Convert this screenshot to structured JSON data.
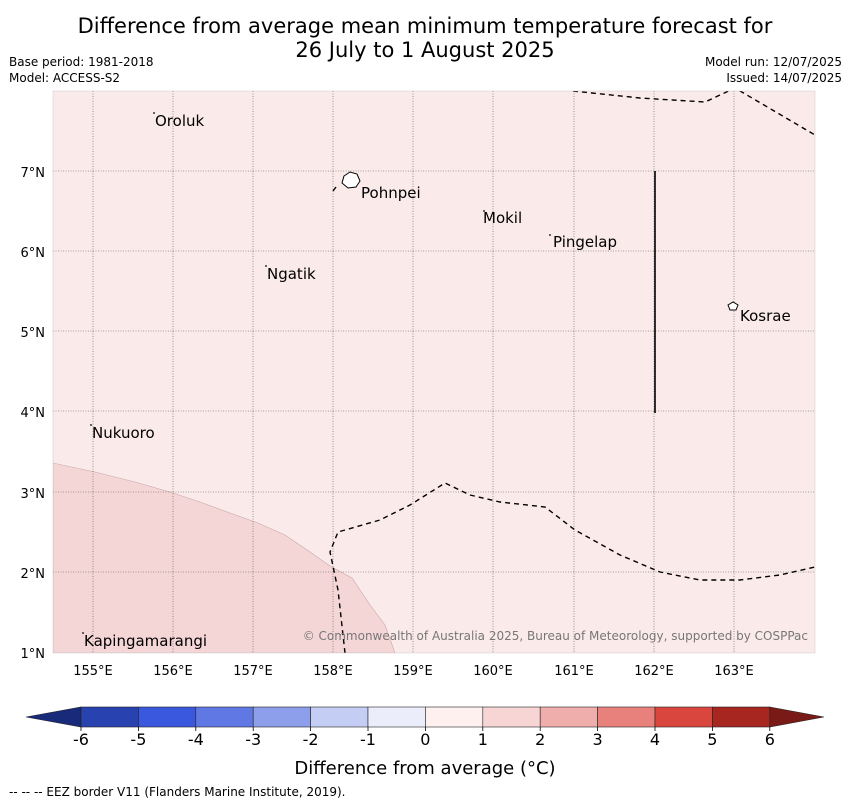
{
  "header": {
    "title_line1": "Difference from average mean minimum temperature forecast for",
    "title_line2": "26 July to 1 August 2025",
    "base_period": "Base period: 1981-2018",
    "model": "Model: ACCESS-S2",
    "model_run": "Model run: 12/07/2025",
    "issued": "Issued: 14/07/2025"
  },
  "map": {
    "lon_ticks": [
      "155°E",
      "156°E",
      "157°E",
      "158°E",
      "159°E",
      "160°E",
      "161°E",
      "162°E",
      "163°E"
    ],
    "lat_ticks": [
      "1°N",
      "2°N",
      "3°N",
      "4°N",
      "5°N",
      "6°N",
      "7°N"
    ],
    "places": [
      {
        "name": "Oroluk"
      },
      {
        "name": "Pohnpei"
      },
      {
        "name": "Mokil"
      },
      {
        "name": "Pingelap"
      },
      {
        "name": "Ngatik"
      },
      {
        "name": "Kosrae"
      },
      {
        "name": "Nukuoro"
      },
      {
        "name": "Kapingamarangi"
      }
    ],
    "copyright": "© Commonwealth of Australia 2025, Bureau of Meteorology, supported by COSPPac",
    "colors": {
      "background_anomaly": "#fbeaea",
      "anomaly_1_2": "#f5d6d6"
    }
  },
  "colorbar": {
    "tick_labels": [
      "-6",
      "-5",
      "-4",
      "-3",
      "-2",
      "-1",
      "0",
      "1",
      "2",
      "3",
      "4",
      "5",
      "6"
    ],
    "colors": [
      "#1a2a7a",
      "#2842b0",
      "#3a58de",
      "#5f78e4",
      "#8d9eea",
      "#c4cdf3",
      "#ebedfb",
      "#fdf0ef",
      "#f7d5d5",
      "#efaeab",
      "#e8807b",
      "#d9463d",
      "#a7261f",
      "#7a1a16"
    ],
    "label": "Difference from average (°C)"
  },
  "footer": {
    "eez_note": "--  --  -- EEZ border V11 (Flanders Marine Institute, 2019)."
  }
}
